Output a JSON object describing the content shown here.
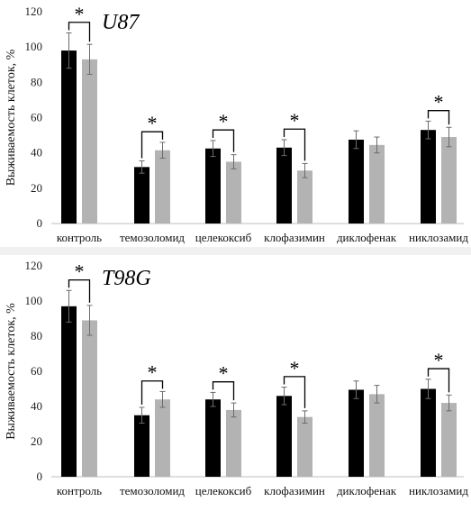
{
  "chart_data": [
    {
      "type": "bar",
      "title": "U87",
      "ylabel": "Выживаемость клеток, %",
      "ylim": [
        0,
        120
      ],
      "yticks": [
        0,
        20,
        40,
        60,
        80,
        100,
        120
      ],
      "categories": [
        "контроль",
        "темозоломид",
        "целекоксиб",
        "клофазимин",
        "диклофенак",
        "никлозамид"
      ],
      "colors": [
        "#000000",
        "#b3b3b3"
      ],
      "series": [
        {
          "values": [
            98,
            32,
            42.5,
            43,
            47.5,
            53
          ],
          "errors": [
            10,
            3.5,
            4.5,
            4.5,
            5,
            5
          ]
        },
        {
          "values": [
            93,
            41.5,
            35,
            30,
            44.5,
            49
          ],
          "errors": [
            8.5,
            4.5,
            4,
            4,
            4.5,
            5.5
          ]
        }
      ],
      "significant": [
        "*",
        "*",
        "*",
        "*",
        "",
        "*"
      ],
      "grid": false
    },
    {
      "type": "bar",
      "title": "T98G",
      "ylabel": "Выживаемость клеток, %",
      "ylim": [
        0,
        120
      ],
      "yticks": [
        0,
        20,
        40,
        60,
        80,
        100,
        120
      ],
      "categories": [
        "контроль",
        "темозоломид",
        "целекоксиб",
        "клофазимин",
        "диклофенак",
        "никлозамид"
      ],
      "colors": [
        "#000000",
        "#b3b3b3"
      ],
      "series": [
        {
          "values": [
            97,
            35,
            44,
            46,
            49.5,
            50
          ],
          "errors": [
            9,
            4.5,
            4,
            5,
            5,
            5.5
          ]
        },
        {
          "values": [
            89,
            44,
            38,
            34,
            47,
            42
          ],
          "errors": [
            8.5,
            4.5,
            4,
            3.5,
            5,
            4.5
          ]
        }
      ],
      "significant": [
        "*",
        "*",
        "*",
        "*",
        "",
        "*"
      ],
      "grid": false
    }
  ]
}
